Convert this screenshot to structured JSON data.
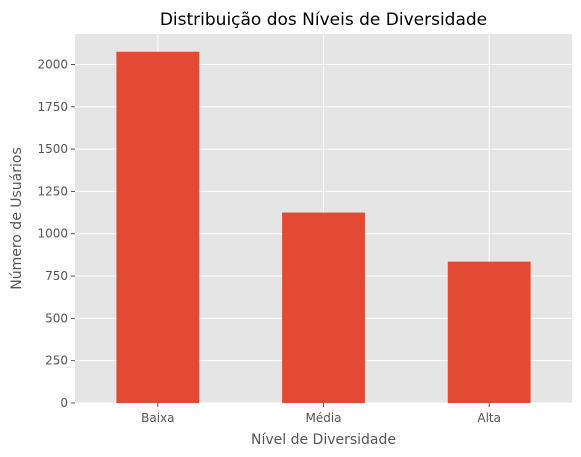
{
  "chart_data": {
    "type": "bar",
    "title": "Distribuição dos Níveis de Diversidade",
    "xlabel": "Nível de Diversidade",
    "ylabel": "Número de Usuários",
    "categories": [
      "Baixa",
      "Média",
      "Alta"
    ],
    "values": [
      2075,
      1125,
      835
    ],
    "ylim": [
      0,
      2180
    ],
    "yticks": [
      0,
      250,
      500,
      750,
      1000,
      1250,
      1500,
      1750,
      2000
    ],
    "grid": true,
    "legend": "none",
    "colors": {
      "bar": "#E24A33",
      "plot_background": "#E5E5E5",
      "grid": "#FFFFFF",
      "text": "#555555",
      "title": "#000000"
    }
  }
}
